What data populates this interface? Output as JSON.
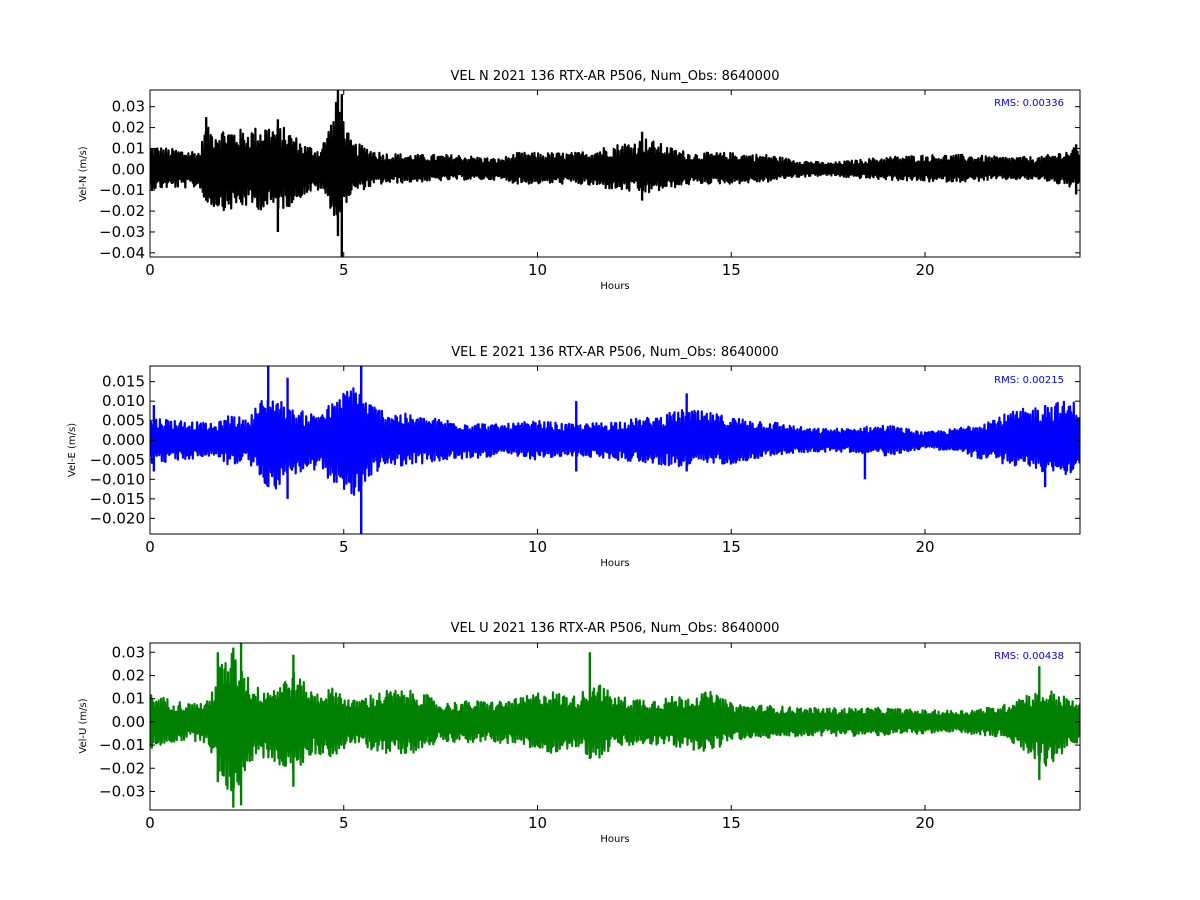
{
  "chart_data": [
    {
      "type": "line",
      "title": "VEL N 2021 136 RTX-AR  P506, Num_Obs: 8640000",
      "xlabel": "Hours",
      "ylabel": "Vel-N (m/s)",
      "annotation": "RMS:  0.00336",
      "annotation_color": "#0000ff",
      "line_color": "#000000",
      "xlim": [
        0,
        24
      ],
      "ylim": [
        -0.042,
        0.038
      ],
      "x_ticks": [
        0,
        5,
        10,
        15,
        20
      ],
      "x_tick_labels": [
        "0",
        "5",
        "10",
        "15",
        "20"
      ],
      "y_ticks": [
        0.03,
        0.02,
        0.01,
        0.0,
        -0.01,
        -0.02,
        -0.03,
        -0.04
      ],
      "y_tick_labels": [
        "0.03",
        "0.02",
        "0.01",
        "0.00",
        "−0.01",
        "−0.02",
        "−0.03",
        "−0.04"
      ],
      "envelope": {
        "hours": [
          0,
          0.5,
          1.3,
          1.4,
          2,
          2.5,
          3,
          3.5,
          4,
          4.4,
          4.7,
          4.85,
          5.0,
          5.2,
          5.6,
          6,
          7,
          8,
          9,
          9.5,
          10,
          11,
          12,
          12.8,
          13.5,
          14,
          15,
          16,
          16.5,
          17.5,
          18,
          19,
          20,
          21,
          22,
          23,
          24
        ],
        "upper": [
          0.012,
          0.01,
          0.009,
          0.02,
          0.02,
          0.019,
          0.022,
          0.02,
          0.012,
          0.01,
          0.025,
          0.036,
          0.024,
          0.013,
          0.011,
          0.008,
          0.007,
          0.007,
          0.005,
          0.008,
          0.008,
          0.008,
          0.012,
          0.015,
          0.01,
          0.008,
          0.008,
          0.007,
          0.005,
          0.003,
          0.004,
          0.006,
          0.007,
          0.007,
          0.006,
          0.006,
          0.011
        ],
        "lower": [
          -0.01,
          -0.009,
          -0.009,
          -0.017,
          -0.02,
          -0.018,
          -0.02,
          -0.019,
          -0.012,
          -0.01,
          -0.02,
          -0.028,
          -0.018,
          -0.012,
          -0.009,
          -0.007,
          -0.006,
          -0.005,
          -0.005,
          -0.007,
          -0.007,
          -0.007,
          -0.01,
          -0.012,
          -0.009,
          -0.007,
          -0.007,
          -0.006,
          -0.004,
          -0.003,
          -0.004,
          -0.005,
          -0.006,
          -0.006,
          -0.005,
          -0.005,
          -0.01
        ]
      },
      "spikes": [
        [
          1.45,
          0.025,
          -0.015
        ],
        [
          3.3,
          0.024,
          -0.03
        ],
        [
          4.85,
          0.038,
          -0.032
        ],
        [
          4.95,
          0.036,
          -0.042
        ],
        [
          12.7,
          0.018,
          -0.015
        ],
        [
          23.9,
          0.012,
          -0.012
        ]
      ]
    },
    {
      "type": "line",
      "title": "VEL E 2021 136 RTX-AR  P506, Num_Obs: 8640000",
      "xlabel": "Hours",
      "ylabel": "Vel-E (m/s)",
      "annotation": "RMS:  0.00215",
      "annotation_color": "#0000ff",
      "line_color": "#0000ff",
      "xlim": [
        0,
        24
      ],
      "ylim": [
        -0.024,
        0.019
      ],
      "x_ticks": [
        0,
        5,
        10,
        15,
        20
      ],
      "x_tick_labels": [
        "0",
        "5",
        "10",
        "15",
        "20"
      ],
      "y_ticks": [
        0.015,
        0.01,
        0.005,
        0.0,
        -0.005,
        -0.01,
        -0.015,
        -0.02
      ],
      "y_tick_labels": [
        "0.015",
        "0.010",
        "0.005",
        "0.000",
        "−0.005",
        "−0.010",
        "−0.015",
        "−0.020"
      ],
      "envelope": {
        "hours": [
          0,
          1,
          1.7,
          2.1,
          2.5,
          2.8,
          3.2,
          3.6,
          4.2,
          4.8,
          5.3,
          5.6,
          6,
          7,
          8,
          9,
          10,
          11,
          12,
          13,
          13.8,
          14.5,
          15,
          16,
          17,
          18,
          19,
          20,
          20.8,
          21.5,
          22.5,
          23.5,
          24
        ],
        "upper": [
          0.006,
          0.005,
          0.004,
          0.007,
          0.005,
          0.01,
          0.012,
          0.008,
          0.007,
          0.01,
          0.016,
          0.01,
          0.008,
          0.006,
          0.005,
          0.004,
          0.005,
          0.004,
          0.005,
          0.006,
          0.008,
          0.007,
          0.006,
          0.005,
          0.003,
          0.003,
          0.004,
          0.002,
          0.003,
          0.005,
          0.008,
          0.01,
          0.01
        ],
        "lower": [
          -0.006,
          -0.005,
          -0.004,
          -0.007,
          -0.005,
          -0.01,
          -0.013,
          -0.009,
          -0.008,
          -0.011,
          -0.016,
          -0.01,
          -0.007,
          -0.006,
          -0.005,
          -0.004,
          -0.005,
          -0.004,
          -0.005,
          -0.006,
          -0.007,
          -0.006,
          -0.006,
          -0.004,
          -0.003,
          -0.003,
          -0.004,
          -0.002,
          -0.003,
          -0.005,
          -0.007,
          -0.009,
          -0.008
        ]
      },
      "spikes": [
        [
          0.1,
          0.009,
          -0.008
        ],
        [
          3.05,
          0.019,
          -0.012
        ],
        [
          3.55,
          0.016,
          -0.015
        ],
        [
          5.45,
          0.019,
          -0.024
        ],
        [
          11.0,
          0.01,
          -0.008
        ],
        [
          13.85,
          0.012,
          -0.008
        ],
        [
          18.45,
          0.003,
          -0.01
        ],
        [
          23.1,
          0.009,
          -0.012
        ]
      ]
    },
    {
      "type": "line",
      "title": "VEL U 2021 136 RTX-AR  P506, Num_Obs: 8640000",
      "xlabel": "Hours",
      "ylabel": "Vel-U (m/s)",
      "annotation": "RMS:  0.00438",
      "annotation_color": "#0000ff",
      "line_color": "#008000",
      "xlim": [
        0,
        24
      ],
      "ylim": [
        -0.038,
        0.034
      ],
      "x_ticks": [
        0,
        5,
        10,
        15,
        20
      ],
      "x_tick_labels": [
        "0",
        "5",
        "10",
        "15",
        "20"
      ],
      "y_ticks": [
        0.03,
        0.02,
        0.01,
        0.0,
        -0.01,
        -0.02,
        -0.03
      ],
      "y_tick_labels": [
        "0.03",
        "0.02",
        "0.01",
        "0.00",
        "−0.01",
        "−0.02",
        "−0.03"
      ],
      "envelope": {
        "hours": [
          0,
          0.5,
          1,
          1.5,
          1.8,
          2.1,
          2.4,
          2.7,
          3.2,
          3.7,
          4.2,
          4.8,
          5.2,
          5.7,
          6.2,
          7,
          7.5,
          8,
          9,
          9.5,
          10.2,
          11,
          11.5,
          12,
          13,
          14,
          14.5,
          15,
          16,
          17,
          18,
          19,
          20,
          21,
          22,
          22.5,
          23.2,
          24
        ],
        "upper": [
          0.012,
          0.01,
          0.008,
          0.009,
          0.025,
          0.03,
          0.025,
          0.015,
          0.016,
          0.022,
          0.013,
          0.015,
          0.009,
          0.012,
          0.014,
          0.013,
          0.008,
          0.009,
          0.009,
          0.01,
          0.014,
          0.011,
          0.018,
          0.011,
          0.01,
          0.012,
          0.013,
          0.008,
          0.007,
          0.006,
          0.006,
          0.006,
          0.005,
          0.005,
          0.007,
          0.012,
          0.014,
          0.008
        ],
        "lower": [
          -0.012,
          -0.009,
          -0.008,
          -0.009,
          -0.025,
          -0.032,
          -0.025,
          -0.015,
          -0.017,
          -0.023,
          -0.014,
          -0.015,
          -0.009,
          -0.012,
          -0.014,
          -0.013,
          -0.008,
          -0.009,
          -0.009,
          -0.01,
          -0.014,
          -0.011,
          -0.017,
          -0.011,
          -0.01,
          -0.012,
          -0.013,
          -0.008,
          -0.007,
          -0.006,
          -0.006,
          -0.006,
          -0.005,
          -0.005,
          -0.007,
          -0.012,
          -0.02,
          -0.008
        ]
      },
      "spikes": [
        [
          1.75,
          0.03,
          -0.026
        ],
        [
          2.15,
          0.032,
          -0.037
        ],
        [
          2.35,
          0.034,
          -0.036
        ],
        [
          3.7,
          0.029,
          -0.028
        ],
        [
          11.35,
          0.03,
          -0.016
        ],
        [
          22.95,
          0.024,
          -0.025
        ]
      ]
    }
  ]
}
